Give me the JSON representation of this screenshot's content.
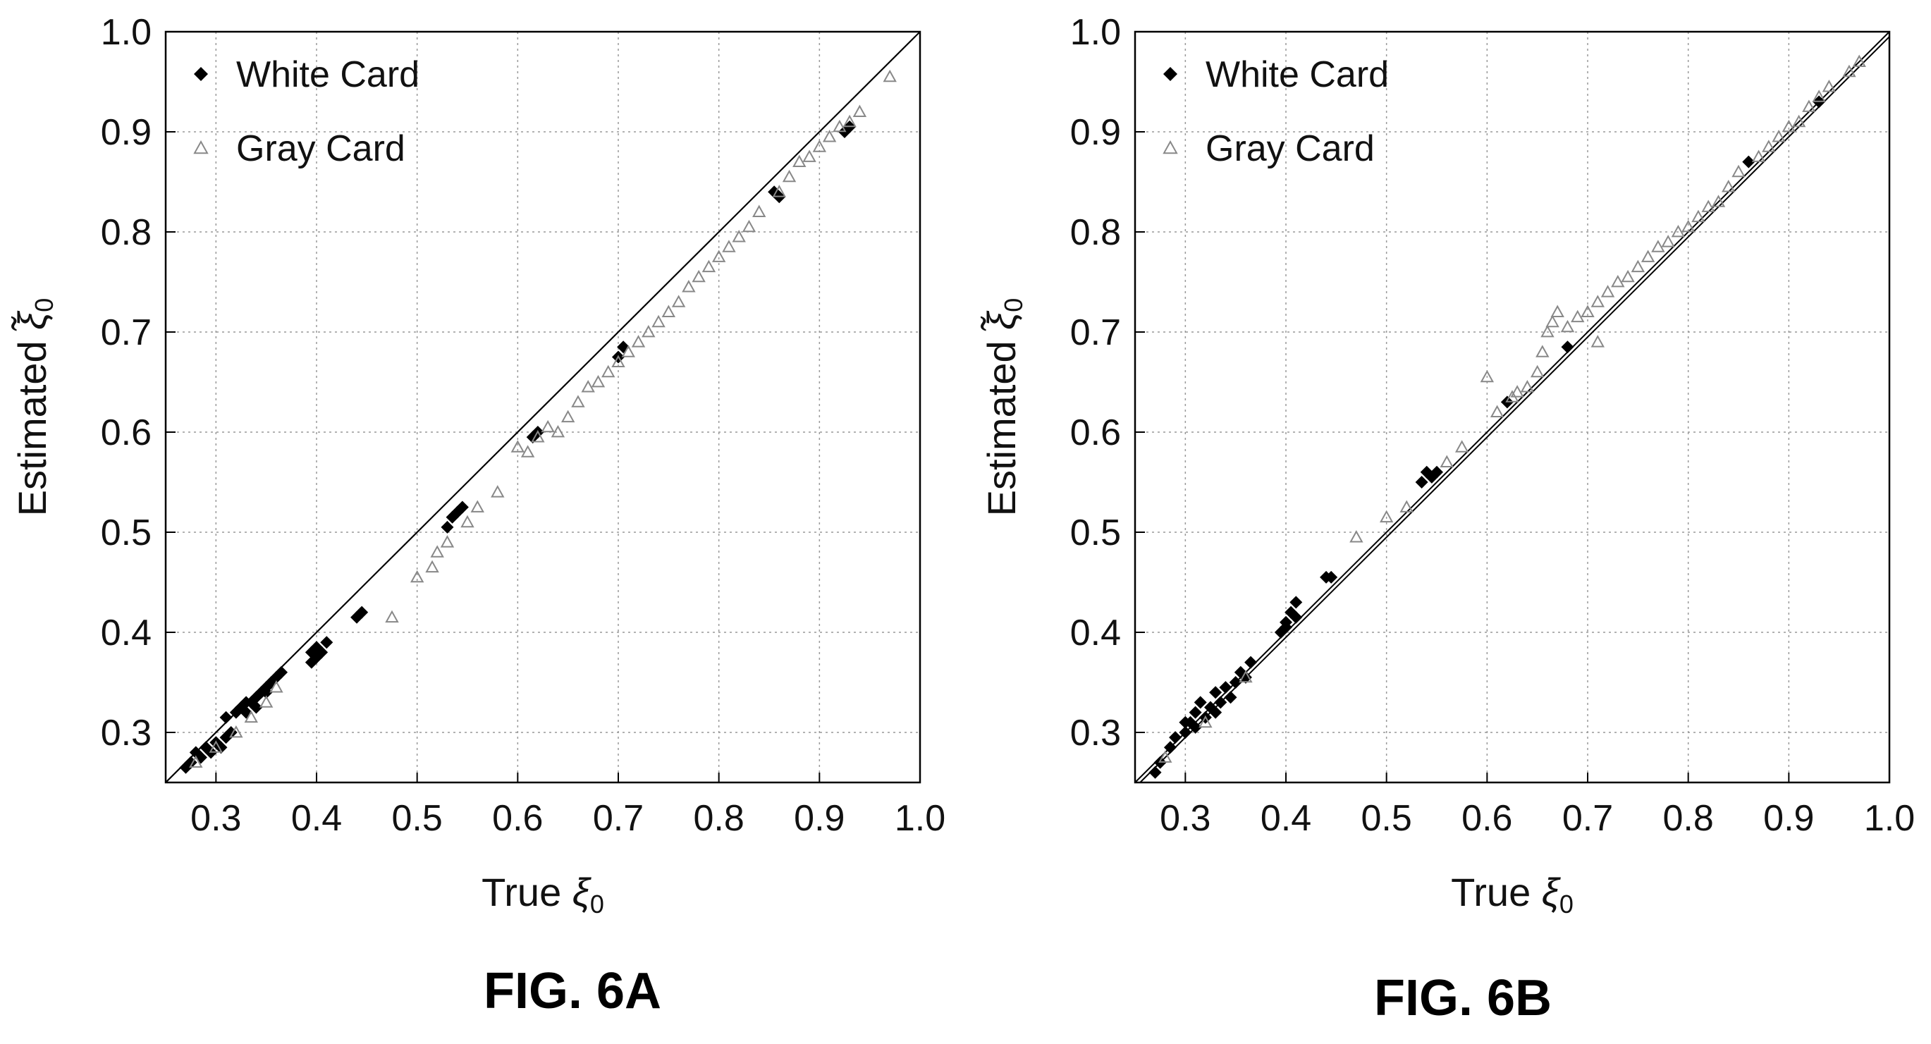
{
  "chart_data": [
    {
      "type": "scatter",
      "caption": "FIG. 6A",
      "xlabel_main": "True ",
      "xlabel_symbol": "ξ",
      "xlabel_sub": "0",
      "ylabel_main": "Estimated ",
      "ylabel_symbol": "ξ̃",
      "ylabel_sub": "0",
      "xlim": [
        0.25,
        1.0
      ],
      "ylim": [
        0.25,
        1.0
      ],
      "xticks": [
        "0.3",
        "0.4",
        "0.5",
        "0.6",
        "0.7",
        "0.8",
        "0.9",
        "1.0"
      ],
      "yticks": [
        "0.3",
        "0.4",
        "0.5",
        "0.6",
        "0.7",
        "0.8",
        "0.9",
        "1.0"
      ],
      "grid": true,
      "legend_position": "top-left",
      "reference_lines": [
        {
          "x": [
            0.25,
            1.0
          ],
          "y": [
            0.25,
            1.0
          ]
        },
        {
          "x": [
            0.25,
            0.995
          ],
          "y": [
            0.25,
            0.995
          ]
        }
      ],
      "series": [
        {
          "name": "White Card",
          "marker": "diamond",
          "color": "#000000",
          "points": [
            [
              0.27,
              0.265
            ],
            [
              0.275,
              0.27
            ],
            [
              0.28,
              0.28
            ],
            [
              0.285,
              0.275
            ],
            [
              0.29,
              0.285
            ],
            [
              0.295,
              0.28
            ],
            [
              0.3,
              0.29
            ],
            [
              0.305,
              0.285
            ],
            [
              0.31,
              0.295
            ],
            [
              0.315,
              0.3
            ],
            [
              0.31,
              0.315
            ],
            [
              0.32,
              0.32
            ],
            [
              0.325,
              0.325
            ],
            [
              0.33,
              0.32
            ],
            [
              0.335,
              0.33
            ],
            [
              0.34,
              0.335
            ],
            [
              0.345,
              0.34
            ],
            [
              0.35,
              0.345
            ],
            [
              0.355,
              0.35
            ],
            [
              0.36,
              0.355
            ],
            [
              0.365,
              0.36
            ],
            [
              0.33,
              0.33
            ],
            [
              0.34,
              0.325
            ],
            [
              0.35,
              0.34
            ],
            [
              0.395,
              0.37
            ],
            [
              0.4,
              0.375
            ],
            [
              0.405,
              0.38
            ],
            [
              0.41,
              0.39
            ],
            [
              0.4,
              0.385
            ],
            [
              0.395,
              0.38
            ],
            [
              0.44,
              0.415
            ],
            [
              0.445,
              0.42
            ],
            [
              0.53,
              0.505
            ],
            [
              0.535,
              0.515
            ],
            [
              0.54,
              0.52
            ],
            [
              0.545,
              0.525
            ],
            [
              0.615,
              0.595
            ],
            [
              0.62,
              0.6
            ],
            [
              0.7,
              0.675
            ],
            [
              0.705,
              0.685
            ],
            [
              0.86,
              0.835
            ],
            [
              0.855,
              0.84
            ],
            [
              0.925,
              0.9
            ],
            [
              0.93,
              0.905
            ]
          ]
        },
        {
          "name": "Gray Card",
          "marker": "triangle",
          "color": "#888888",
          "points": [
            [
              0.28,
              0.27
            ],
            [
              0.3,
              0.285
            ],
            [
              0.32,
              0.3
            ],
            [
              0.335,
              0.315
            ],
            [
              0.35,
              0.33
            ],
            [
              0.36,
              0.345
            ],
            [
              0.475,
              0.415
            ],
            [
              0.5,
              0.455
            ],
            [
              0.515,
              0.465
            ],
            [
              0.52,
              0.48
            ],
            [
              0.53,
              0.49
            ],
            [
              0.55,
              0.51
            ],
            [
              0.56,
              0.525
            ],
            [
              0.58,
              0.54
            ],
            [
              0.6,
              0.585
            ],
            [
              0.61,
              0.58
            ],
            [
              0.62,
              0.595
            ],
            [
              0.63,
              0.605
            ],
            [
              0.64,
              0.6
            ],
            [
              0.65,
              0.615
            ],
            [
              0.66,
              0.63
            ],
            [
              0.67,
              0.645
            ],
            [
              0.68,
              0.65
            ],
            [
              0.69,
              0.66
            ],
            [
              0.7,
              0.67
            ],
            [
              0.71,
              0.68
            ],
            [
              0.72,
              0.69
            ],
            [
              0.73,
              0.7
            ],
            [
              0.74,
              0.71
            ],
            [
              0.75,
              0.72
            ],
            [
              0.76,
              0.73
            ],
            [
              0.77,
              0.745
            ],
            [
              0.78,
              0.755
            ],
            [
              0.79,
              0.765
            ],
            [
              0.8,
              0.775
            ],
            [
              0.81,
              0.785
            ],
            [
              0.82,
              0.795
            ],
            [
              0.83,
              0.805
            ],
            [
              0.84,
              0.82
            ],
            [
              0.86,
              0.84
            ],
            [
              0.87,
              0.855
            ],
            [
              0.88,
              0.87
            ],
            [
              0.89,
              0.875
            ],
            [
              0.9,
              0.885
            ],
            [
              0.91,
              0.895
            ],
            [
              0.92,
              0.905
            ],
            [
              0.93,
              0.91
            ],
            [
              0.94,
              0.92
            ],
            [
              0.97,
              0.955
            ]
          ]
        }
      ]
    },
    {
      "type": "scatter",
      "caption": "FIG. 6B",
      "xlabel_main": "True ",
      "xlabel_symbol": "ξ",
      "xlabel_sub": "0",
      "ylabel_main": "Estimated ",
      "ylabel_symbol": "ξ̃",
      "ylabel_sub": "0",
      "xlim": [
        0.25,
        1.0
      ],
      "ylim": [
        0.25,
        1.0
      ],
      "xticks": [
        "0.3",
        "0.4",
        "0.5",
        "0.6",
        "0.7",
        "0.8",
        "0.9",
        "1.0"
      ],
      "yticks": [
        "0.3",
        "0.4",
        "0.5",
        "0.6",
        "0.7",
        "0.8",
        "0.9",
        "1.0"
      ],
      "grid": true,
      "legend_position": "top-left",
      "reference_lines": [
        {
          "x": [
            0.25,
            1.0
          ],
          "y": [
            0.25,
            1.0
          ]
        },
        {
          "x": [
            0.255,
            1.0
          ],
          "y": [
            0.25,
            0.995
          ]
        }
      ],
      "series": [
        {
          "name": "White Card",
          "marker": "diamond",
          "color": "#000000",
          "points": [
            [
              0.27,
              0.26
            ],
            [
              0.275,
              0.27
            ],
            [
              0.285,
              0.285
            ],
            [
              0.29,
              0.295
            ],
            [
              0.3,
              0.3
            ],
            [
              0.305,
              0.31
            ],
            [
              0.31,
              0.32
            ],
            [
              0.315,
              0.33
            ],
            [
              0.32,
              0.315
            ],
            [
              0.325,
              0.325
            ],
            [
              0.33,
              0.34
            ],
            [
              0.335,
              0.33
            ],
            [
              0.34,
              0.345
            ],
            [
              0.345,
              0.335
            ],
            [
              0.35,
              0.35
            ],
            [
              0.355,
              0.36
            ],
            [
              0.36,
              0.355
            ],
            [
              0.365,
              0.37
            ],
            [
              0.3,
              0.31
            ],
            [
              0.31,
              0.305
            ],
            [
              0.33,
              0.32
            ],
            [
              0.395,
              0.4
            ],
            [
              0.4,
              0.41
            ],
            [
              0.405,
              0.42
            ],
            [
              0.41,
              0.43
            ],
            [
              0.4,
              0.405
            ],
            [
              0.41,
              0.415
            ],
            [
              0.44,
              0.455
            ],
            [
              0.445,
              0.455
            ],
            [
              0.535,
              0.55
            ],
            [
              0.54,
              0.56
            ],
            [
              0.545,
              0.555
            ],
            [
              0.55,
              0.56
            ],
            [
              0.62,
              0.63
            ],
            [
              0.68,
              0.685
            ],
            [
              0.86,
              0.87
            ],
            [
              0.93,
              0.93
            ]
          ]
        },
        {
          "name": "Gray Card",
          "marker": "triangle",
          "color": "#888888",
          "points": [
            [
              0.28,
              0.275
            ],
            [
              0.32,
              0.31
            ],
            [
              0.36,
              0.355
            ],
            [
              0.47,
              0.495
            ],
            [
              0.5,
              0.515
            ],
            [
              0.52,
              0.525
            ],
            [
              0.56,
              0.57
            ],
            [
              0.575,
              0.585
            ],
            [
              0.6,
              0.655
            ],
            [
              0.61,
              0.62
            ],
            [
              0.625,
              0.635
            ],
            [
              0.63,
              0.64
            ],
            [
              0.64,
              0.645
            ],
            [
              0.65,
              0.66
            ],
            [
              0.655,
              0.68
            ],
            [
              0.66,
              0.7
            ],
            [
              0.665,
              0.71
            ],
            [
              0.67,
              0.72
            ],
            [
              0.68,
              0.705
            ],
            [
              0.69,
              0.715
            ],
            [
              0.7,
              0.72
            ],
            [
              0.71,
              0.73
            ],
            [
              0.71,
              0.69
            ],
            [
              0.72,
              0.74
            ],
            [
              0.73,
              0.75
            ],
            [
              0.74,
              0.755
            ],
            [
              0.75,
              0.765
            ],
            [
              0.76,
              0.775
            ],
            [
              0.77,
              0.785
            ],
            [
              0.78,
              0.79
            ],
            [
              0.79,
              0.8
            ],
            [
              0.8,
              0.805
            ],
            [
              0.81,
              0.815
            ],
            [
              0.82,
              0.825
            ],
            [
              0.83,
              0.83
            ],
            [
              0.84,
              0.845
            ],
            [
              0.85,
              0.86
            ],
            [
              0.87,
              0.875
            ],
            [
              0.88,
              0.885
            ],
            [
              0.89,
              0.895
            ],
            [
              0.9,
              0.905
            ],
            [
              0.91,
              0.91
            ],
            [
              0.92,
              0.925
            ],
            [
              0.93,
              0.935
            ],
            [
              0.94,
              0.945
            ],
            [
              0.96,
              0.96
            ],
            [
              0.97,
              0.97
            ]
          ]
        }
      ]
    }
  ]
}
